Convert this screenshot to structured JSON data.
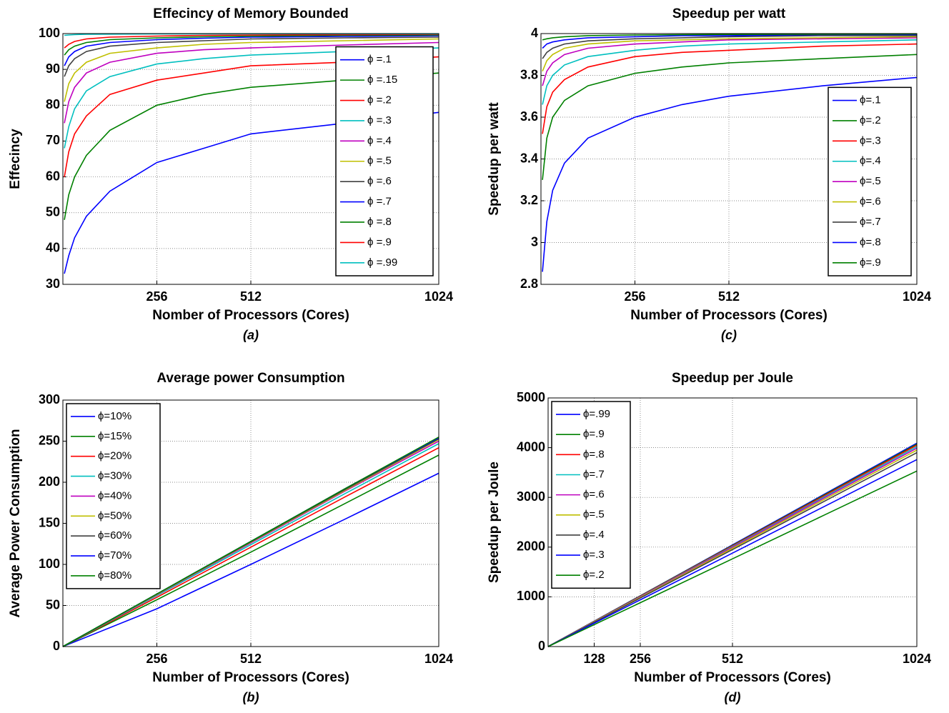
{
  "chart_data": [
    {
      "type": "line",
      "title": "Effecincy of Memory Bounded",
      "xlabel": "Nomber of Processors (Cores)",
      "ylabel": "Effecincy",
      "caption": "(a)",
      "xlim": [
        0,
        1024
      ],
      "xticks": [
        256,
        512,
        1024
      ],
      "ylim": [
        30,
        100
      ],
      "yticks": [
        30,
        40,
        50,
        60,
        70,
        80,
        90,
        100
      ],
      "grid": true,
      "legend": "lower right",
      "x": [
        4,
        16,
        32,
        64,
        128,
        256,
        384,
        512,
        768,
        1024
      ],
      "series": [
        {
          "name": "ϕ =.1",
          "color": "#0000ff",
          "values": [
            33,
            38,
            43,
            49,
            56,
            64,
            68,
            72,
            75,
            78
          ]
        },
        {
          "name": "ϕ =.15",
          "color": "#008000",
          "values": [
            48,
            55,
            60,
            66,
            73,
            80,
            83,
            85,
            87,
            89
          ]
        },
        {
          "name": "ϕ =.2",
          "color": "#ff0000",
          "values": [
            60,
            67,
            72,
            77,
            83,
            87,
            89,
            91,
            92,
            93.5
          ]
        },
        {
          "name": "ϕ =.3",
          "color": "#00bfbf",
          "values": [
            68,
            74,
            79,
            84,
            88,
            91.5,
            93,
            94,
            95,
            96
          ]
        },
        {
          "name": "ϕ =.4",
          "color": "#bf00bf",
          "values": [
            75,
            81,
            85,
            89,
            92,
            94.5,
            95.5,
            96,
            96.8,
            97.5
          ]
        },
        {
          "name": "ϕ =.5",
          "color": "#bfbf00",
          "values": [
            81,
            86,
            89,
            92,
            94.5,
            96,
            97,
            97.5,
            98,
            98.5
          ]
        },
        {
          "name": "ϕ =.6",
          "color": "#404040",
          "values": [
            88,
            91,
            93,
            95,
            96.5,
            97.5,
            98,
            98.5,
            98.8,
            99
          ]
        },
        {
          "name": "ϕ =.7",
          "color": "#0000ff",
          "values": [
            91,
            93.5,
            95,
            96.5,
            97.5,
            98.3,
            98.7,
            99,
            99.2,
            99.4
          ]
        },
        {
          "name": "ϕ =.8",
          "color": "#008000",
          "values": [
            94,
            95.5,
            96.5,
            97.5,
            98.3,
            98.8,
            99.1,
            99.3,
            99.5,
            99.6
          ]
        },
        {
          "name": "ϕ =.9",
          "color": "#ff0000",
          "values": [
            96,
            97,
            97.8,
            98.5,
            99,
            99.3,
            99.5,
            99.6,
            99.7,
            99.8
          ]
        },
        {
          "name": "ϕ =.99",
          "color": "#00bfbf",
          "values": [
            99.5,
            99.6,
            99.7,
            99.8,
            99.85,
            99.9,
            99.9,
            99.95,
            99.95,
            99.95
          ]
        }
      ]
    },
    {
      "type": "line",
      "title": "Speedup per watt",
      "xlabel": "Number of Processors (Cores)",
      "ylabel": "Speedup per watt",
      "caption": "(c)",
      "xlim": [
        0,
        1024
      ],
      "xticks": [
        256,
        512,
        1024
      ],
      "ylim": [
        2.8,
        4
      ],
      "yticks": [
        2.8,
        3,
        3.2,
        3.4,
        3.6,
        3.8,
        4
      ],
      "grid": true,
      "legend": "lower right",
      "x": [
        4,
        16,
        32,
        64,
        128,
        256,
        384,
        512,
        768,
        1024
      ],
      "series": [
        {
          "name": "ϕ=.1",
          "color": "#0000ff",
          "values": [
            2.86,
            3.1,
            3.25,
            3.38,
            3.5,
            3.6,
            3.66,
            3.7,
            3.75,
            3.79
          ]
        },
        {
          "name": "ϕ=.2",
          "color": "#008000",
          "values": [
            3.3,
            3.5,
            3.6,
            3.68,
            3.75,
            3.81,
            3.84,
            3.86,
            3.88,
            3.9
          ]
        },
        {
          "name": "ϕ=.3",
          "color": "#ff0000",
          "values": [
            3.52,
            3.65,
            3.72,
            3.78,
            3.84,
            3.89,
            3.91,
            3.92,
            3.94,
            3.95
          ]
        },
        {
          "name": "ϕ=.4",
          "color": "#00bfbf",
          "values": [
            3.66,
            3.75,
            3.8,
            3.85,
            3.89,
            3.92,
            3.94,
            3.95,
            3.96,
            3.97
          ]
        },
        {
          "name": "ϕ=.5",
          "color": "#bf00bf",
          "values": [
            3.75,
            3.82,
            3.86,
            3.9,
            3.93,
            3.95,
            3.96,
            3.97,
            3.975,
            3.98
          ]
        },
        {
          "name": "ϕ=.6",
          "color": "#bfbf00",
          "values": [
            3.82,
            3.87,
            3.9,
            3.93,
            3.95,
            3.965,
            3.97,
            3.975,
            3.98,
            3.985
          ]
        },
        {
          "name": "ϕ=.7",
          "color": "#404040",
          "values": [
            3.88,
            3.91,
            3.93,
            3.95,
            3.965,
            3.975,
            3.98,
            3.985,
            3.99,
            3.99
          ]
        },
        {
          "name": "ϕ=.8",
          "color": "#0000ff",
          "values": [
            3.93,
            3.95,
            3.96,
            3.97,
            3.98,
            3.985,
            3.99,
            3.99,
            3.995,
            3.995
          ]
        },
        {
          "name": "ϕ=.9",
          "color": "#008000",
          "values": [
            3.97,
            3.975,
            3.98,
            3.985,
            3.99,
            3.993,
            3.995,
            3.996,
            3.997,
            3.998
          ]
        }
      ]
    },
    {
      "type": "line",
      "title": "Average power Consumption",
      "xlabel": "Number of Processors (Cores)",
      "ylabel": "Average Power Consumption",
      "caption": "(b)",
      "xlim": [
        0,
        1024
      ],
      "xticks": [
        256,
        512,
        1024
      ],
      "ylim": [
        0,
        300
      ],
      "yticks": [
        0,
        50,
        100,
        150,
        200,
        250,
        300
      ],
      "grid": true,
      "legend": "upper left",
      "x": [
        0,
        256,
        512,
        768,
        1024
      ],
      "series": [
        {
          "name": "ϕ=10%",
          "color": "#0000ff",
          "values": [
            0,
            46,
            100,
            155,
            211
          ]
        },
        {
          "name": "ϕ=15%",
          "color": "#008000",
          "values": [
            0,
            57,
            115,
            174,
            233
          ]
        },
        {
          "name": "ϕ=20%",
          "color": "#ff0000",
          "values": [
            0,
            60,
            121,
            182,
            242
          ]
        },
        {
          "name": "ϕ=30%",
          "color": "#00bfbf",
          "values": [
            0,
            62,
            124,
            186,
            247
          ]
        },
        {
          "name": "ϕ=40%",
          "color": "#bf00bf",
          "values": [
            0,
            63,
            126,
            189,
            250
          ]
        },
        {
          "name": "ϕ=50%",
          "color": "#bfbf00",
          "values": [
            0,
            63.5,
            127,
            190,
            252
          ]
        },
        {
          "name": "ϕ=60%",
          "color": "#404040",
          "values": [
            0,
            64,
            127.5,
            191,
            253
          ]
        },
        {
          "name": "ϕ=70%",
          "color": "#0000ff",
          "values": [
            0,
            64,
            128,
            192,
            254
          ]
        },
        {
          "name": "ϕ=80%",
          "color": "#008000",
          "values": [
            0,
            64,
            128,
            192,
            255
          ]
        }
      ]
    },
    {
      "type": "line",
      "title": "Speedup per Joule",
      "xlabel": "Number of Processors (Cores)",
      "ylabel": "Speedup per Joule",
      "caption": "(d)",
      "xlim": [
        0,
        1024
      ],
      "xticks": [
        128,
        256,
        512,
        1024
      ],
      "ylim": [
        0,
        5000
      ],
      "yticks": [
        0,
        1000,
        2000,
        3000,
        4000,
        5000
      ],
      "grid": true,
      "legend": "upper left",
      "x": [
        0,
        256,
        512,
        768,
        1024
      ],
      "series": [
        {
          "name": "ϕ=.99",
          "color": "#0000ff",
          "values": [
            0,
            1022,
            2045,
            3068,
            4090
          ]
        },
        {
          "name": "ϕ=.9",
          "color": "#008000",
          "values": [
            0,
            1018,
            2035,
            3053,
            4070
          ]
        },
        {
          "name": "ϕ=.8",
          "color": "#ff0000",
          "values": [
            0,
            1012,
            2025,
            3038,
            4050
          ]
        },
        {
          "name": "ϕ=.7",
          "color": "#00bfbf",
          "values": [
            0,
            1005,
            2010,
            3015,
            4020
          ]
        },
        {
          "name": "ϕ=.6",
          "color": "#bf00bf",
          "values": [
            0,
            998,
            1995,
            2993,
            3990
          ]
        },
        {
          "name": "ϕ=.5",
          "color": "#bfbf00",
          "values": [
            0,
            988,
            1975,
            2963,
            3950
          ]
        },
        {
          "name": "ϕ=.4",
          "color": "#404040",
          "values": [
            0,
            975,
            1950,
            2925,
            3900
          ]
        },
        {
          "name": "ϕ=.3",
          "color": "#0000ff",
          "values": [
            0,
            940,
            1880,
            2820,
            3760
          ]
        },
        {
          "name": "ϕ=.2",
          "color": "#008000",
          "values": [
            0,
            882,
            1765,
            2648,
            3530
          ]
        }
      ]
    }
  ]
}
